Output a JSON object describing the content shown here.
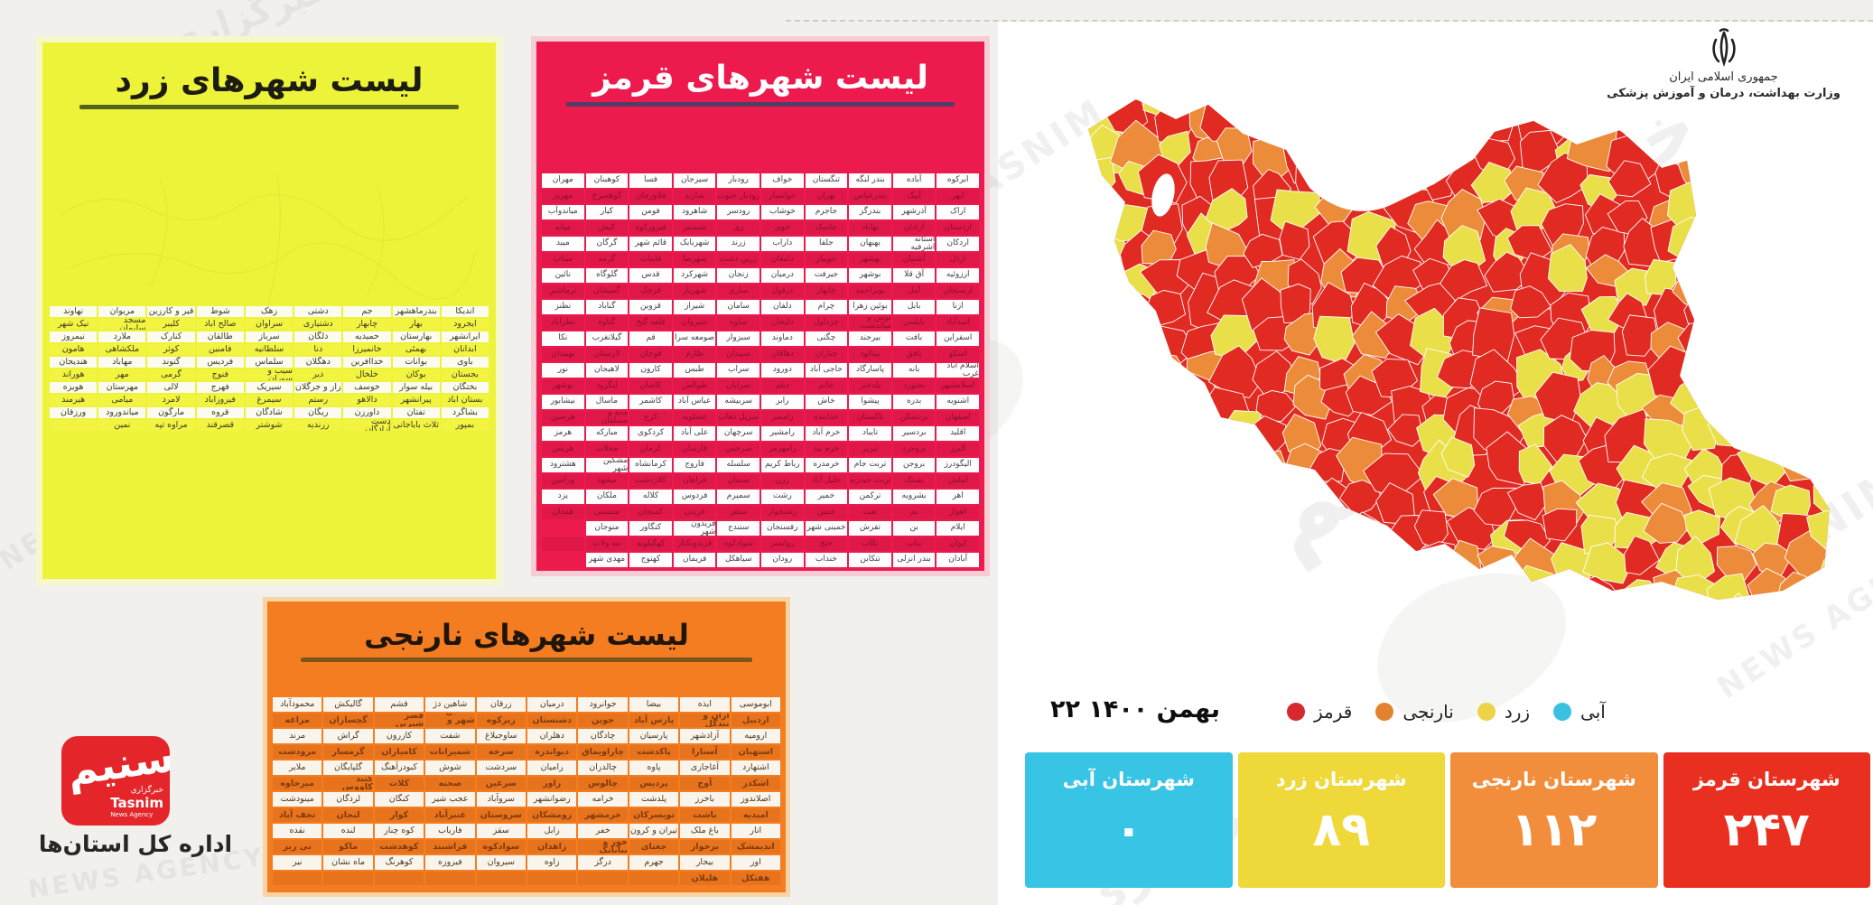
{
  "ministry": {
    "line1": "جمهوری اسلامی ایران",
    "line2": "وزارت بهداشت، درمان و آموزش پزشکی"
  },
  "date": "۲۲ بهمن ۱۴۰۰",
  "legend": {
    "items": [
      {
        "label": "قرمز",
        "color": "#d7282e"
      },
      {
        "label": "نارنجی",
        "color": "#e2832f"
      },
      {
        "label": "زرد",
        "color": "#eed34a"
      },
      {
        "label": "آبی",
        "color": "#3ac1e2"
      }
    ]
  },
  "stats": [
    {
      "label": "شهرستان آبی",
      "value": "۰",
      "color": "#38c4e4"
    },
    {
      "label": "شهرستان زرد",
      "value": "۸۹",
      "color": "#efd83a"
    },
    {
      "label": "شهرستان نارنجی",
      "value": "۱۱۲",
      "color": "#f18d3b"
    },
    {
      "label": "شهرستان قرمز",
      "value": "۲۴۷",
      "color": "#e93020"
    }
  ],
  "logo": {
    "calligraphy": "تسنیم",
    "agency_fa": "خبرگزاری",
    "agency_en": "Tasnim",
    "agency_sub": "News Agency",
    "department": "اداره کل استان‌ها"
  },
  "watermarks": {
    "fa1": "خبرگزاری",
    "fa2": "تسنیم",
    "en1": "TASNIM",
    "en2": "NEWS AGENCY"
  },
  "map": {
    "palette": {
      "red": "#e02a22",
      "orange": "#ec8c3a",
      "yellow": "#e9df48",
      "blue": "#3ac1e2"
    },
    "border": "#ffffff"
  },
  "panels": {
    "yellow": {
      "title": "لیست شهرهای زرد",
      "rows": [
        [
          "اندیکا",
          "بندرماهشهر",
          "جم",
          "دشتی",
          "زهک",
          "شوط",
          "قیر و کارزین",
          "مریوان",
          "نهاوند"
        ],
        [
          "ایجرود",
          "بهار",
          "چابهار",
          "دشتیاری",
          "سراوان",
          "صالح آباد",
          "کلیبر",
          "مسجد سلیمان",
          "نیک شهر"
        ],
        [
          "ایرانشهر",
          "بهارستان",
          "حمیدیه",
          "دلگان",
          "سرباز",
          "طالقان",
          "کنارک",
          "ملارد",
          "نیمروز"
        ],
        [
          "آبدانان",
          "بهمئی",
          "خانمیرزا",
          "دنا",
          "سلطانیه",
          "فامنین",
          "کوثر",
          "ملکشاهی",
          "هامون"
        ],
        [
          "باوی",
          "بوانات",
          "خداآفرین",
          "دهگلان",
          "سلماس",
          "فردیس",
          "گتوند",
          "مهاباد",
          "هندیجان"
        ],
        [
          "بجستان",
          "بوکان",
          "خلخال",
          "دیر",
          "سیب و سوران",
          "فنوج",
          "گرمی",
          "مهر",
          "هوراند"
        ],
        [
          "بختگان",
          "بیله سوار",
          "خوسف",
          "راز و جرگلان",
          "سیریک",
          "فهرج",
          "لالی",
          "مهرستان",
          "هویزه"
        ],
        [
          "بستان آباد",
          "پیرانشهر",
          "دالاهو",
          "رستم",
          "سیمرغ",
          "فیروزآباد",
          "لامرد",
          "میامی",
          "هیرمند"
        ],
        [
          "بشاگرد",
          "تفتان",
          "داورزن",
          "ریگان",
          "شادگان",
          "قروه",
          "مارگون",
          "میاندورود",
          "ورزقان"
        ],
        [
          "بمپور",
          "ثلاث باباجانی",
          "دشت آزادگان",
          "زرندیه",
          "شوشتر",
          "قصرقند",
          "مراوه تپه",
          "نمین",
          ""
        ]
      ]
    },
    "red": {
      "title": "لیست شهرهای قرمز",
      "rows": [
        [
          "ابرکوه",
          "آباده",
          "بندر لنگه",
          "تنگستان",
          "خواف",
          "رودبار",
          "سیرجان",
          "فسا",
          "کوهبنان",
          "مهران"
        ],
        [
          "ابهر",
          "آبیک",
          "بندرعباس",
          "تهران",
          "خوانسار",
          "رودبار جنوب",
          "شازند",
          "فلاورجان",
          "کوهسرخ",
          "مهریز"
        ],
        [
          "اراک",
          "آذرشهر",
          "بندرگز",
          "جاجرم",
          "خوشاب",
          "رودسر",
          "شاهرود",
          "فومن",
          "کیار",
          "میاندوآب"
        ],
        [
          "اردستان",
          "آرادان",
          "بهاباد",
          "جاسک",
          "خوی",
          "ری",
          "شبستر",
          "فیروزکوه",
          "کیش",
          "میانه"
        ],
        [
          "اردکان",
          "آستانه اشرفیه",
          "بهبهان",
          "جلفا",
          "داراب",
          "زرند",
          "شهربابک",
          "قائم شهر",
          "گرگان",
          "میبد"
        ],
        [
          "اردل",
          "آشتیان",
          "بهشهر",
          "جویبار",
          "دامغان",
          "زرین دشت",
          "شهرضا",
          "قاینات",
          "گرمه",
          "میناب"
        ],
        [
          "ارزوئیه",
          "آق قلا",
          "بوشهر",
          "جیرفت",
          "درمیان",
          "زنجان",
          "شهرکرد",
          "قدس",
          "گلوگاه",
          "نائین"
        ],
        [
          "ارسنجان",
          "آمل",
          "بویراحمد",
          "چابهار",
          "دزفول",
          "ساری",
          "شهریار",
          "قرچک",
          "گمیشان",
          "نرماشیر"
        ],
        [
          "ازنا",
          "بابل",
          "بوئین زهرا",
          "چرام",
          "دلفان",
          "سامان",
          "شیراز",
          "قزوین",
          "گناباد",
          "نطنز"
        ],
        [
          "اسدآباد",
          "بابلسر",
          "بوئین و میاندشت",
          "چرداول",
          "دلیجان",
          "ساوه",
          "شیروان",
          "قلعه گنج",
          "گناوه",
          "نظرآباد"
        ],
        [
          "اسفراین",
          "بافت",
          "بیرجند",
          "چگنی",
          "دماوند",
          "سبزوار",
          "صومعه سرا",
          "قم",
          "گیلانغرب",
          "نکا"
        ],
        [
          "اسکو",
          "بافق",
          "بینالود",
          "چناران",
          "دهاقان",
          "سپیدان",
          "طارم",
          "قوچان",
          "لارستان",
          "نهبندان"
        ],
        [
          "اسلام آباد غرب",
          "بانه",
          "پاسارگاد",
          "حاجی آباد",
          "دورود",
          "سراب",
          "طبس",
          "کارون",
          "لاهیجان",
          "نور"
        ],
        [
          "اسلامشهر",
          "بجنورد",
          "پلدختر",
          "خاتم",
          "دیلم",
          "سرایان",
          "طوالش",
          "کاشان",
          "لنگرود",
          "نوشهر"
        ],
        [
          "اشنویه",
          "بدره",
          "پیشوا",
          "خاش",
          "رابر",
          "سربیشه",
          "عباس آباد",
          "کاشمر",
          "ماسال",
          "نیشابور"
        ],
        [
          "اصفهان",
          "بردسکن",
          "تاکستان",
          "خدابنده",
          "رامسر",
          "سرپل ذهاب",
          "عسلویه",
          "کرج",
          "مانه و سملقان",
          "هرسین"
        ],
        [
          "اقلید",
          "بردسیر",
          "تایباد",
          "خرم آباد",
          "رامشیر",
          "سرچهان",
          "علی آباد",
          "کردکوی",
          "مبارکه",
          "هرمز"
        ],
        [
          "البرز",
          "بروجرد",
          "تبریز",
          "خرم بید",
          "رامهرمز",
          "سرخس",
          "فارسان",
          "کرمان",
          "محلات",
          "هریس"
        ],
        [
          "الیگودرز",
          "بروجن",
          "تربت جام",
          "خرمدره",
          "رباط کریم",
          "سلسله",
          "فاروج",
          "کرمانشاه",
          "مشکین شهر",
          "هشترود"
        ],
        [
          "املش",
          "بستک",
          "تربت حیدریه",
          "خلیل آباد",
          "رزن",
          "سمنان",
          "فراهان",
          "کلاردشت",
          "مشهد",
          "ورامین"
        ],
        [
          "اهر",
          "بشرویه",
          "ترکمن",
          "خمیر",
          "رشت",
          "سمیرم",
          "فردوس",
          "کلاله",
          "ملکان",
          "یزد"
        ],
        [
          "اهواز",
          "بم",
          "تفت",
          "خمین",
          "رشتخوار",
          "سنقر",
          "فریدن",
          "کمیجان",
          "ممسنی",
          "همدان"
        ],
        [
          "ایلام",
          "بن",
          "تفرش",
          "خمینی شهر",
          "رفسنجان",
          "سنندج",
          "فریدون شهر",
          "کنگاور",
          "منوجان",
          ""
        ],
        [
          "ایوان",
          "بناب",
          "تکاب",
          "خنج",
          "روانسر",
          "سوادکوه",
          "فریدونکنار",
          "کهگیلویه",
          "مه ولات",
          ""
        ],
        [
          "آبادان",
          "بندر انزلی",
          "تنکابن",
          "خنداب",
          "رودان",
          "سیاهکل",
          "فریمان",
          "کهنوج",
          "مهدی شهر",
          ""
        ]
      ]
    },
    "orange": {
      "title": "لیست شهرهای نارنجی",
      "rows": [
        [
          "ابوموسی",
          "ایذه",
          "بیضا",
          "جوانرود",
          "درمیان",
          "زرقان",
          "شاهین دژ",
          "قشم",
          "گالیکش",
          "محمودآباد"
        ],
        [
          "اردبیل",
          "اران و بیدگل",
          "پارس آباد",
          "جوین",
          "دشتستان",
          "زیرکوه",
          "شاهین شهر و میمه",
          "قصر شیرین",
          "گچساران",
          "مراغه"
        ],
        [
          "ارومیه",
          "آزادشهر",
          "پارسیان",
          "چادگان",
          "دهلران",
          "ساوجبلاغ",
          "شفت",
          "کازرون",
          "گراش",
          "مرند"
        ],
        [
          "استهبان",
          "آستارا",
          "پاکدشت",
          "چاراویماق",
          "دیواندره",
          "سرخه",
          "شمیرانات",
          "کامیاران",
          "گرمسار",
          "مرودشت"
        ],
        [
          "اشتهارد",
          "آغاجاری",
          "پاوه",
          "چالدران",
          "رامیان",
          "سردشت",
          "شوش",
          "کبودرآهنگ",
          "گلپایگان",
          "ملایر"
        ],
        [
          "اشکذر",
          "آوج",
          "پردیس",
          "چالوس",
          "راور",
          "سرعین",
          "صحنه",
          "کلات",
          "گنبد کاووس",
          "میرجاوه"
        ],
        [
          "اصلاندوز",
          "باخرز",
          "پلدشت",
          "خرامه",
          "رضوانشهر",
          "سروآباد",
          "عجب شیر",
          "کنگان",
          "لردگان",
          "مینودشت"
        ],
        [
          "امیدیه",
          "باشت",
          "تویسرکان",
          "خرمشهر",
          "رومشکان",
          "سروستان",
          "عنبرآباد",
          "کوار",
          "لنجان",
          "نجف آباد"
        ],
        [
          "انار",
          "باغ ملک",
          "تیران و کرون",
          "خفر",
          "زابل",
          "سقز",
          "فاریاب",
          "کوه چنار",
          "لنده",
          "نقده"
        ],
        [
          "اندیمشک",
          "برخوار",
          "جغتای",
          "خور و بیابانک",
          "زاهدان",
          "سوادکوه",
          "فراشبند",
          "کوهدشت",
          "ماکو",
          "نی ریز"
        ],
        [
          "اوز",
          "بیجار",
          "جهرم",
          "درگز",
          "زاوه",
          "سیروان",
          "فیروزه",
          "کوهرنگ",
          "ماه نشان",
          "نیر"
        ],
        [
          "هفتکل",
          "هلیلان",
          "",
          "",
          "",
          "",
          "",
          "",
          "",
          ""
        ]
      ]
    }
  }
}
